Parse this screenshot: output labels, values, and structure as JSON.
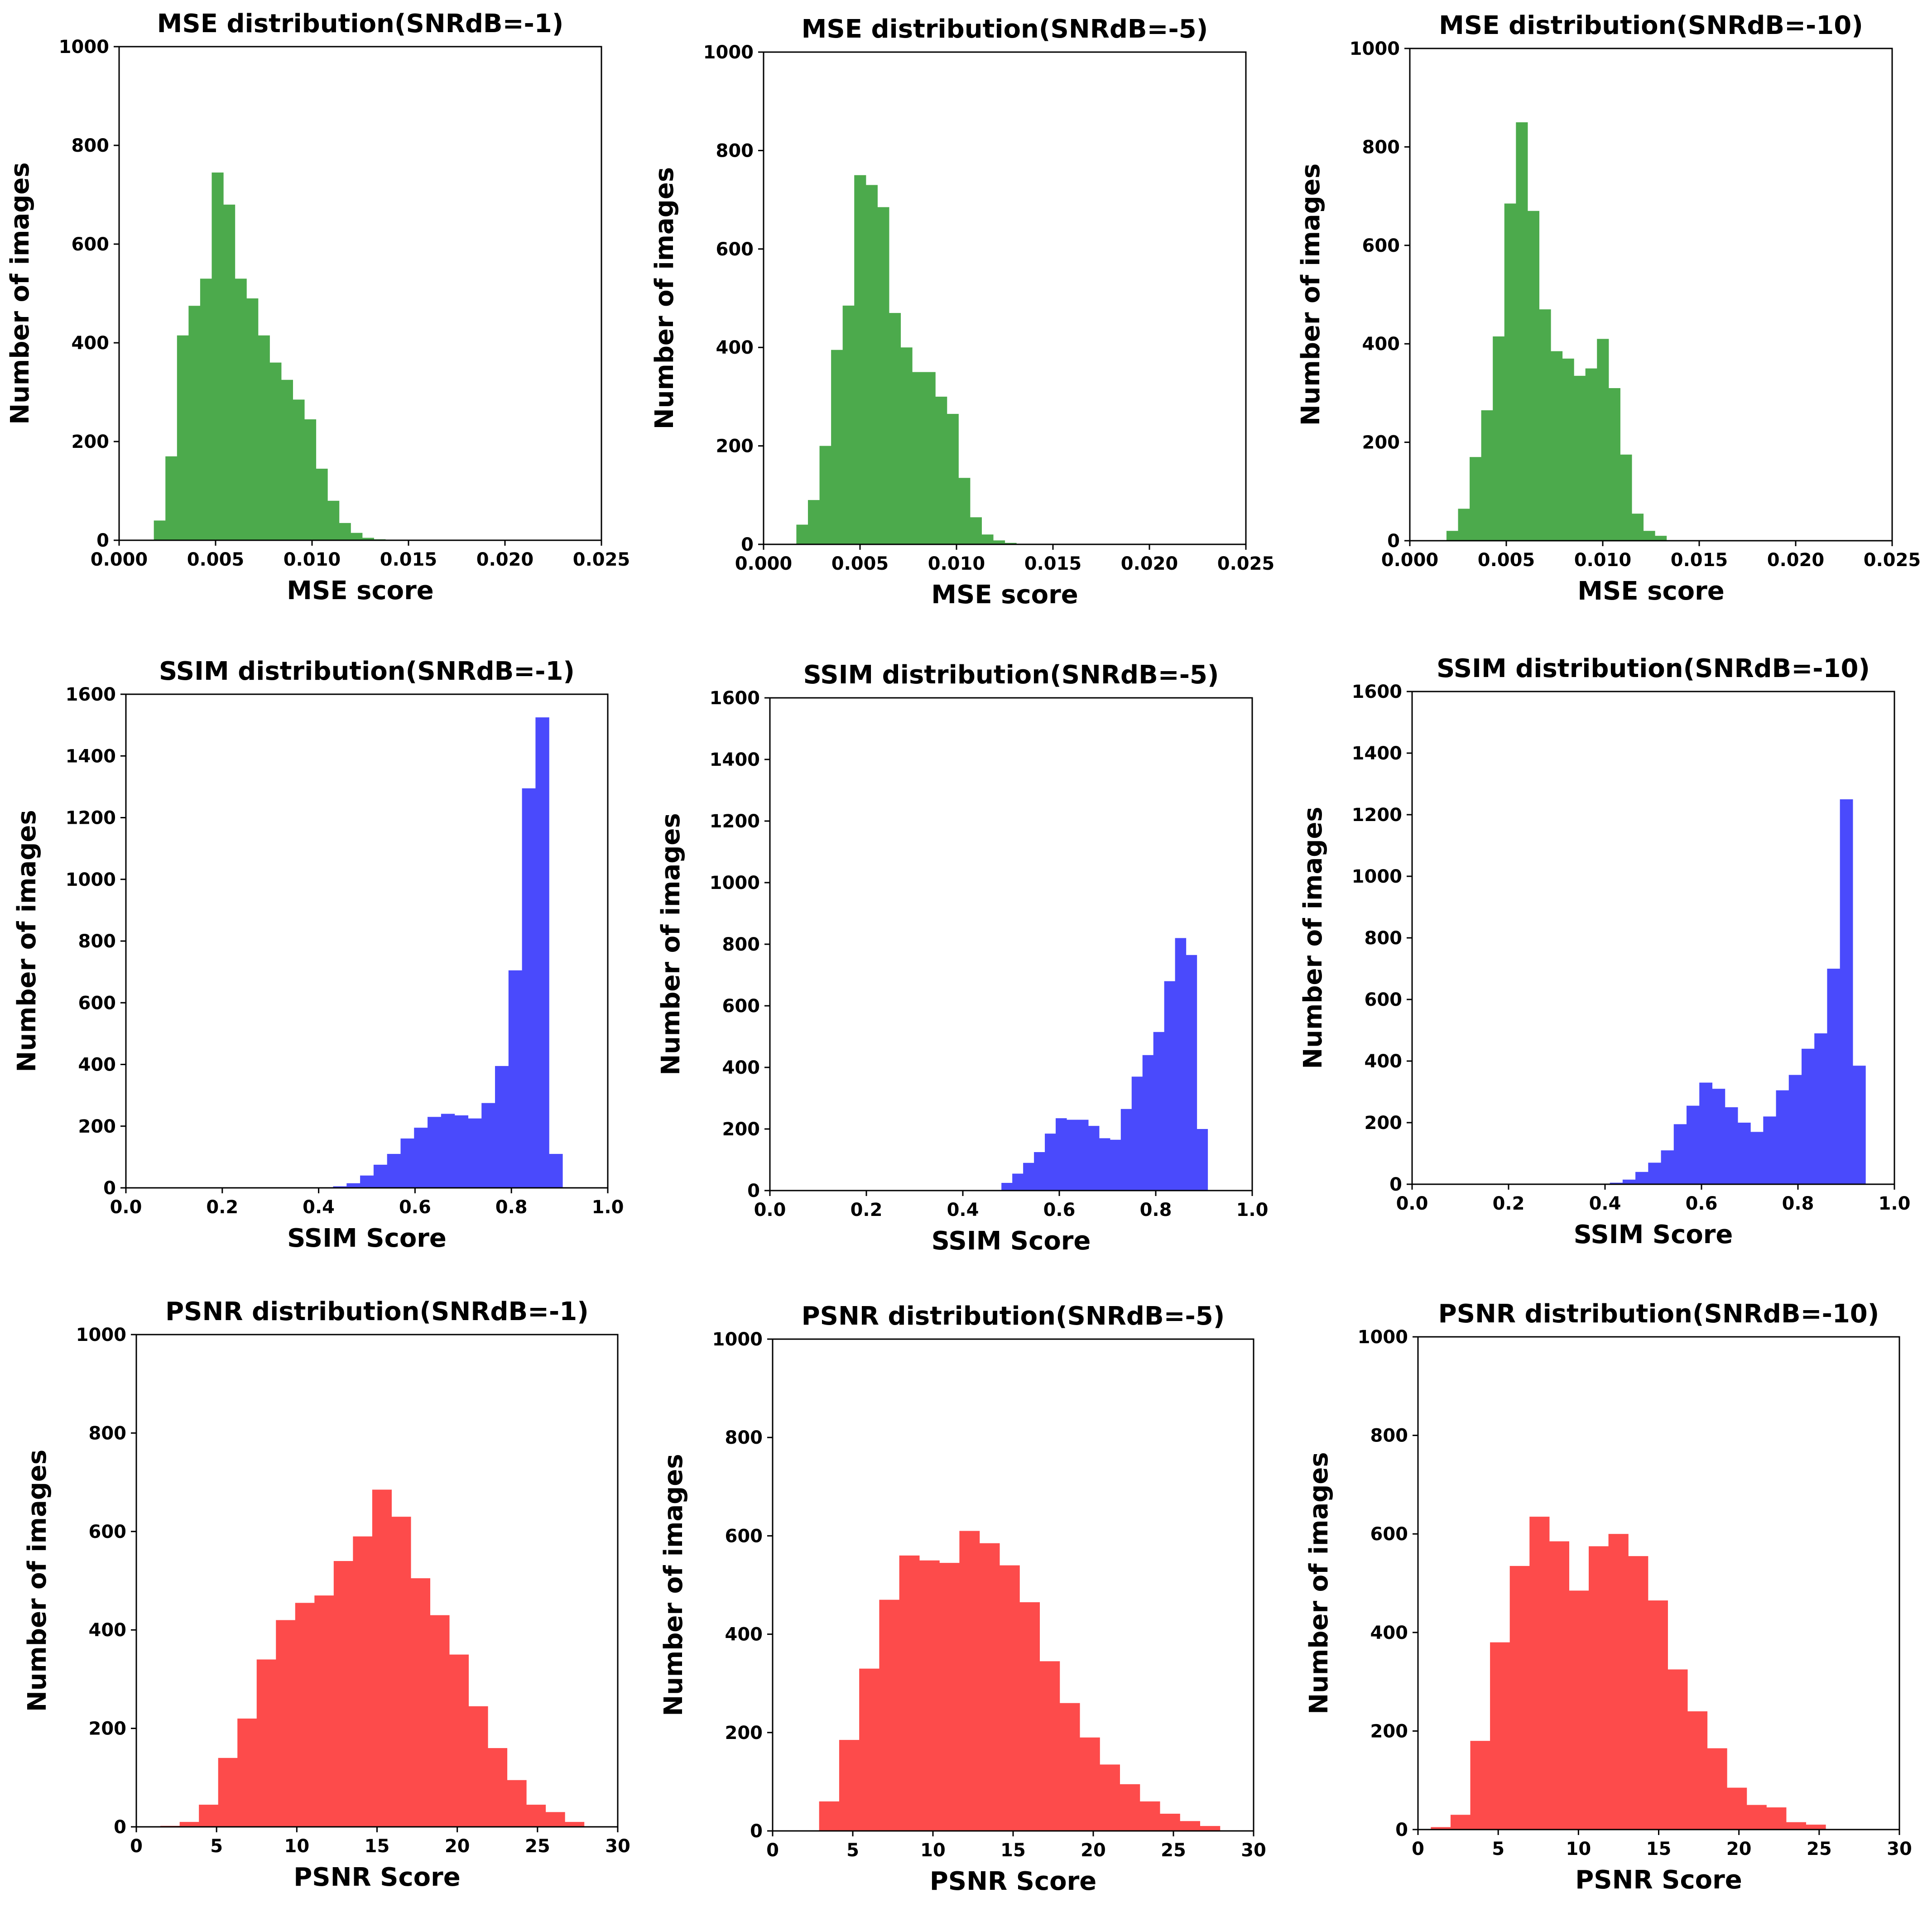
{
  "chart_data": [
    {
      "type": "bar",
      "title": "MSE distribution(SNRdB=-1)",
      "xlabel": "MSE score",
      "ylabel": "Number of images",
      "xlim": [
        0,
        0.025
      ],
      "ylim": [
        0,
        1000
      ],
      "xticks": [
        "0.000",
        "0.005",
        "0.010",
        "0.015",
        "0.020",
        "0.025"
      ],
      "yticks": [
        "0",
        "200",
        "400",
        "600",
        "800",
        "1000"
      ],
      "grid": false,
      "color": "#4caa4c",
      "bin_start": 0.0018,
      "bin_width": 0.0006,
      "values": [
        40,
        170,
        415,
        475,
        530,
        745,
        680,
        530,
        490,
        415,
        360,
        325,
        285,
        245,
        145,
        80,
        35,
        15,
        5,
        2
      ]
    },
    {
      "type": "bar",
      "title": "MSE distribution(SNRdB=-5)",
      "xlabel": "MSE score",
      "ylabel": "Number of images",
      "xlim": [
        0,
        0.025
      ],
      "ylim": [
        0,
        1000
      ],
      "xticks": [
        "0.000",
        "0.005",
        "0.010",
        "0.015",
        "0.020",
        "0.025"
      ],
      "yticks": [
        "0",
        "200",
        "400",
        "600",
        "800",
        "1000"
      ],
      "grid": false,
      "color": "#4caa4c",
      "bin_start": 0.0017,
      "bin_width": 0.0006,
      "values": [
        40,
        90,
        200,
        395,
        485,
        750,
        730,
        685,
        470,
        400,
        350,
        350,
        300,
        265,
        135,
        55,
        20,
        8,
        3
      ]
    },
    {
      "type": "bar",
      "title": "MSE distribution(SNRdB=-10)",
      "xlabel": "MSE score",
      "ylabel": "Number of images",
      "xlim": [
        0,
        0.025
      ],
      "ylim": [
        0,
        1000
      ],
      "xticks": [
        "0.000",
        "0.005",
        "0.010",
        "0.015",
        "0.020",
        "0.025"
      ],
      "yticks": [
        "0",
        "200",
        "400",
        "600",
        "800",
        "1000"
      ],
      "grid": false,
      "color": "#4caa4c",
      "bin_start": 0.0019,
      "bin_width": 0.0006,
      "values": [
        20,
        65,
        170,
        265,
        415,
        685,
        850,
        670,
        470,
        385,
        370,
        335,
        350,
        410,
        310,
        175,
        55,
        20,
        10
      ]
    },
    {
      "type": "bar",
      "title": "SSIM distribution(SNRdB=-1)",
      "xlabel": "SSIM Score",
      "ylabel": "Number of images",
      "xlim": [
        0,
        1.0
      ],
      "ylim": [
        0,
        1600
      ],
      "xticks": [
        "0.0",
        "0.2",
        "0.4",
        "0.6",
        "0.8",
        "1.0"
      ],
      "yticks": [
        "0",
        "200",
        "400",
        "600",
        "800",
        "1000",
        "1200",
        "1400",
        "1600"
      ],
      "grid": false,
      "color": "#4a4afc",
      "bin_start": 0.43,
      "bin_width": 0.028,
      "values": [
        5,
        15,
        40,
        75,
        110,
        160,
        195,
        230,
        240,
        235,
        225,
        275,
        395,
        705,
        1295,
        1525,
        110
      ]
    },
    {
      "type": "bar",
      "title": "SSIM distribution(SNRdB=-5)",
      "xlabel": "SSIM Score",
      "ylabel": "Number of images",
      "xlim": [
        0,
        1.0
      ],
      "ylim": [
        0,
        1600
      ],
      "xticks": [
        "0.0",
        "0.2",
        "0.4",
        "0.6",
        "0.8",
        "1.0"
      ],
      "yticks": [
        "0",
        "200",
        "400",
        "600",
        "800",
        "1000",
        "1200",
        "1400",
        "1600"
      ],
      "grid": false,
      "color": "#4a4afc",
      "bin_start": 0.48,
      "bin_width": 0.0225,
      "values": [
        25,
        55,
        90,
        125,
        185,
        235,
        230,
        230,
        210,
        170,
        165,
        265,
        370,
        440,
        515,
        680,
        820,
        765,
        200
      ]
    },
    {
      "type": "bar",
      "title": "SSIM distribution(SNRdB=-10)",
      "xlabel": "SSIM Score",
      "ylabel": "Number of images",
      "xlim": [
        0,
        1.0
      ],
      "ylim": [
        0,
        1600
      ],
      "xticks": [
        "0.0",
        "0.2",
        "0.4",
        "0.6",
        "0.8",
        "1.0"
      ],
      "yticks": [
        "0",
        "200",
        "400",
        "600",
        "800",
        "1000",
        "1200",
        "1400",
        "1600"
      ],
      "grid": false,
      "color": "#4a4afc",
      "bin_start": 0.41,
      "bin_width": 0.0265,
      "values": [
        5,
        15,
        40,
        70,
        110,
        195,
        255,
        330,
        310,
        250,
        200,
        170,
        220,
        305,
        355,
        440,
        490,
        700,
        1250,
        385
      ]
    },
    {
      "type": "bar",
      "title": "PSNR distribution(SNRdB=-1)",
      "xlabel": "PSNR Score",
      "ylabel": "Number of images",
      "xlim": [
        0,
        30
      ],
      "ylim": [
        0,
        1000
      ],
      "xticks": [
        "0",
        "5",
        "10",
        "15",
        "20",
        "25",
        "30"
      ],
      "yticks": [
        "0",
        "200",
        "400",
        "600",
        "800",
        "1000"
      ],
      "grid": false,
      "color": "#fd4b4b",
      "bin_start": 1.5,
      "bin_width": 1.2,
      "values": [
        2,
        10,
        45,
        140,
        220,
        340,
        420,
        455,
        470,
        540,
        590,
        685,
        630,
        505,
        430,
        350,
        245,
        160,
        95,
        45,
        30,
        10
      ]
    },
    {
      "type": "bar",
      "title": "PSNR distribution(SNRdB=-5)",
      "xlabel": "PSNR Score",
      "ylabel": "Number of images",
      "xlim": [
        0,
        30
      ],
      "ylim": [
        0,
        1000
      ],
      "xticks": [
        "0",
        "5",
        "10",
        "15",
        "20",
        "25",
        "30"
      ],
      "yticks": [
        "0",
        "200",
        "400",
        "600",
        "800",
        "1000"
      ],
      "grid": false,
      "color": "#fd4b4b",
      "bin_start": 2.9,
      "bin_width": 1.25,
      "values": [
        60,
        185,
        330,
        470,
        560,
        550,
        545,
        610,
        585,
        540,
        465,
        345,
        260,
        190,
        135,
        95,
        60,
        35,
        20,
        10
      ]
    },
    {
      "type": "bar",
      "title": "PSNR distribution(SNRdB=-10)",
      "xlabel": "PSNR Score",
      "ylabel": "Number of images",
      "xlim": [
        0,
        30
      ],
      "ylim": [
        0,
        1000
      ],
      "xticks": [
        "0",
        "5",
        "10",
        "15",
        "20",
        "25",
        "30"
      ],
      "yticks": [
        "0",
        "200",
        "400",
        "600",
        "800",
        "1000"
      ],
      "grid": false,
      "color": "#fd4b4b",
      "bin_start": 0.8,
      "bin_width": 1.23,
      "values": [
        5,
        30,
        180,
        380,
        535,
        635,
        585,
        485,
        575,
        600,
        555,
        465,
        325,
        240,
        165,
        85,
        50,
        45,
        15,
        10
      ]
    }
  ]
}
